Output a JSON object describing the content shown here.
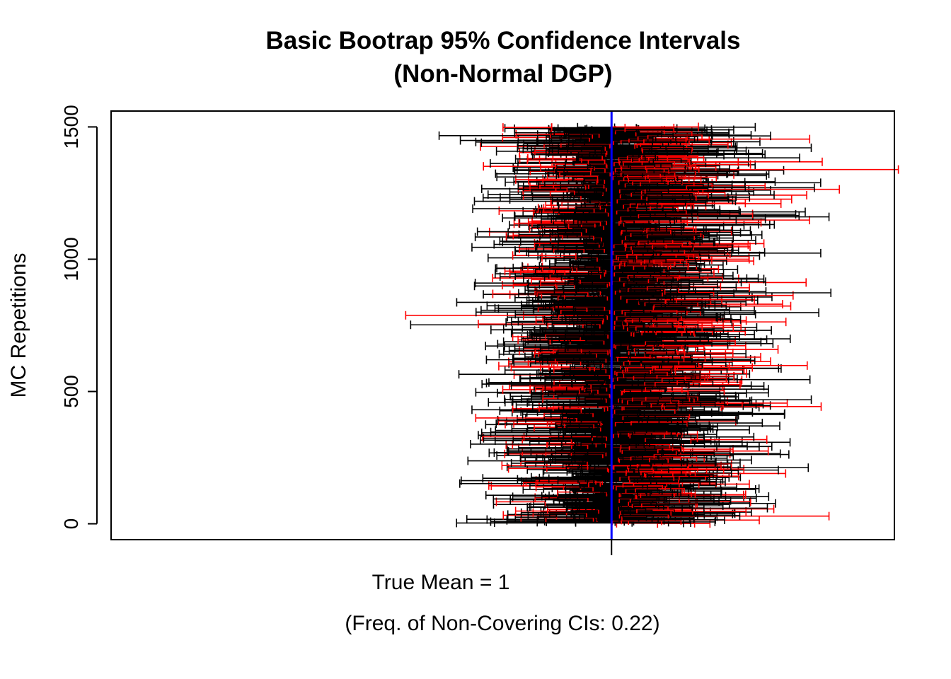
{
  "chart_data": {
    "type": "interval",
    "title_line1": "Basic Bootrap 95% Confidence Intervals",
    "title_line2": "(Non-Normal DGP)",
    "xlabel": "True Mean = 1",
    "ylabel": "MC Repetitions",
    "subtitle": "(Freq. of Non-Covering CIs: 0.22)",
    "y_ticks": [
      0,
      500,
      1000,
      1500
    ],
    "x_ticks": [
      1
    ],
    "ylim": [
      -60,
      1560
    ],
    "xlim": [
      -1.3,
      2.3
    ],
    "true_mean": 1,
    "n_intervals": 1500,
    "non_covering_frequency": 0.22,
    "colors": {
      "covering": "#000000",
      "non_covering": "#ff0000",
      "true_mean_line": "#0000ff"
    }
  }
}
